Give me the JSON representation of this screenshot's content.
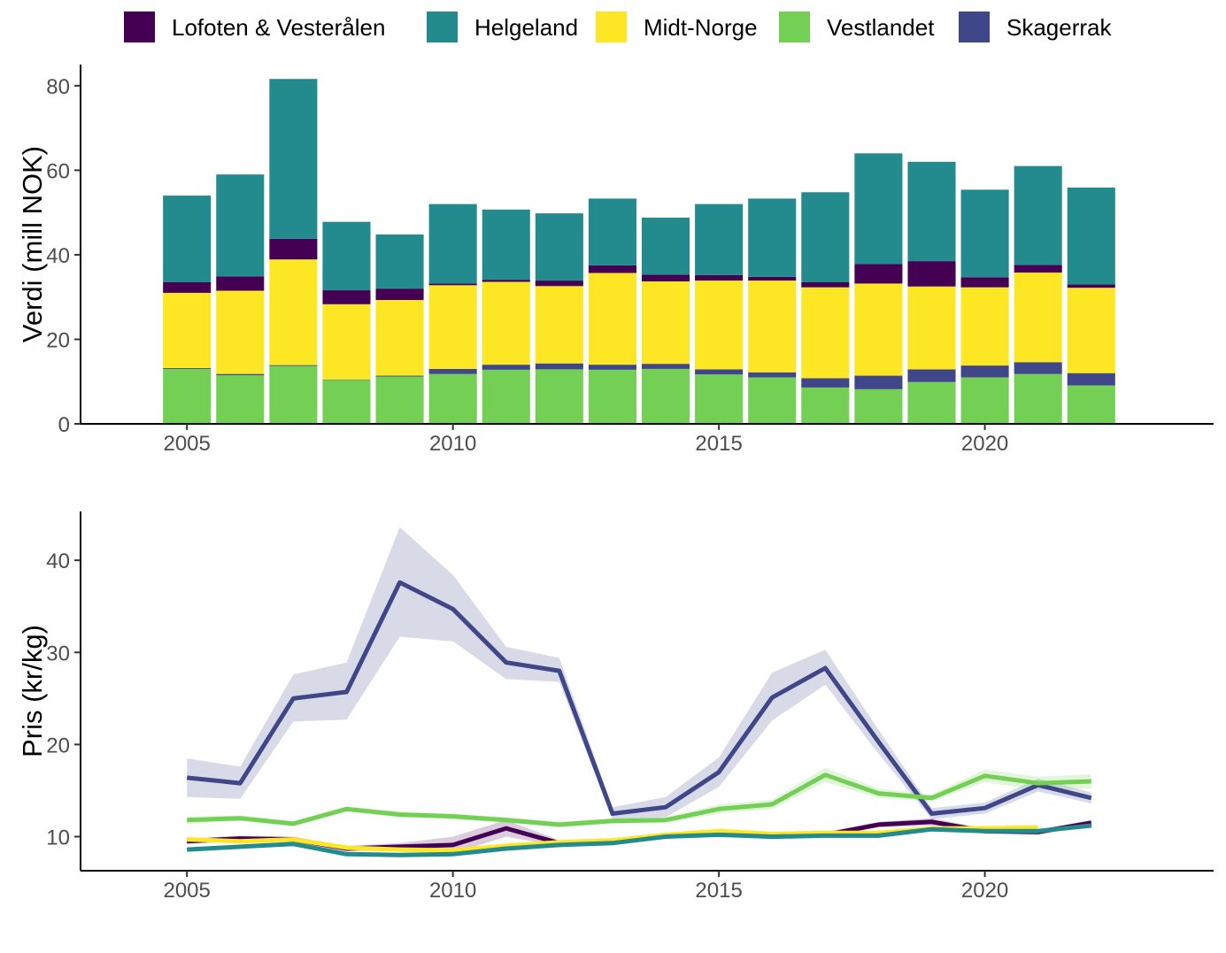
{
  "legend": [
    {
      "name": "Lofoten & Vesterålen",
      "color": "#440154"
    },
    {
      "name": "Helgeland",
      "color": "#238A8D"
    },
    {
      "name": "Midt-Norge",
      "color": "#FDE725"
    },
    {
      "name": "Vestlandet",
      "color": "#73D055"
    },
    {
      "name": "Skagerrak",
      "color": "#404788"
    }
  ],
  "chart_data": [
    {
      "type": "bar",
      "stacked": true,
      "ylabel": "Verdi (mill NOK)",
      "xlabel": "",
      "ylim": [
        0,
        85
      ],
      "xlim": [
        2003.0,
        2024.3
      ],
      "yticks": [
        0,
        20,
        40,
        60,
        80
      ],
      "xticks": [
        2005,
        2010,
        2015,
        2020
      ],
      "categories": [
        2005,
        2006,
        2007,
        2008,
        2009,
        2010,
        2011,
        2012,
        2013,
        2014,
        2015,
        2016,
        2017,
        2018,
        2019,
        2020,
        2021,
        2022
      ],
      "series": [
        {
          "name": "Vestlandet",
          "color": "#73D055",
          "values": [
            13.0,
            11.5,
            13.7,
            10.4,
            11.2,
            11.8,
            12.8,
            12.9,
            12.8,
            13.0,
            11.7,
            11.0,
            8.6,
            8.2,
            9.9,
            11.0,
            11.8,
            9.1
          ]
        },
        {
          "name": "Skagerrak",
          "color": "#404788",
          "values": [
            0.2,
            0.3,
            0.2,
            0.1,
            0.2,
            1.2,
            1.2,
            1.4,
            1.2,
            1.2,
            1.2,
            1.2,
            2.2,
            3.2,
            3.0,
            2.8,
            2.8,
            2.9
          ]
        },
        {
          "name": "Midt-Norge",
          "color": "#FDE725",
          "values": [
            17.8,
            19.7,
            25.0,
            17.8,
            17.9,
            19.8,
            19.6,
            18.3,
            21.7,
            19.5,
            21.0,
            21.7,
            21.5,
            21.8,
            19.6,
            18.5,
            21.2,
            20.2
          ]
        },
        {
          "name": "Lofoten & Vesterålen",
          "color": "#440154",
          "values": [
            2.5,
            3.4,
            4.9,
            3.3,
            2.7,
            0.4,
            0.5,
            1.3,
            1.8,
            1.6,
            1.3,
            0.9,
            1.2,
            4.6,
            6.0,
            2.4,
            1.8,
            0.8
          ]
        },
        {
          "name": "Helgeland",
          "color": "#238A8D",
          "values": [
            20.5,
            24.1,
            37.8,
            16.2,
            12.8,
            18.8,
            16.6,
            15.9,
            15.8,
            13.5,
            16.8,
            18.5,
            21.3,
            26.2,
            23.5,
            20.7,
            23.4,
            22.9
          ]
        }
      ]
    },
    {
      "type": "line",
      "ylabel": "Pris (kr/kg)",
      "xlabel": "",
      "ylim": [
        6.3,
        45.3
      ],
      "xlim": [
        2003.0,
        2024.3
      ],
      "yticks": [
        10,
        20,
        30,
        40
      ],
      "xticks": [
        2005,
        2010,
        2015,
        2020
      ],
      "x": [
        2005,
        2006,
        2007,
        2008,
        2009,
        2010,
        2011,
        2012,
        2013,
        2014,
        2015,
        2016,
        2017,
        2018,
        2019,
        2020,
        2021,
        2022
      ],
      "series": [
        {
          "name": "Skagerrak",
          "color": "#404788",
          "values": [
            16.4,
            15.8,
            25.0,
            25.7,
            37.6,
            34.7,
            28.9,
            28.0,
            12.5,
            13.2,
            17.0,
            25.1,
            28.3,
            20.3,
            12.5,
            13.1,
            15.6,
            14.2
          ],
          "lower": [
            14.3,
            14.1,
            22.5,
            22.7,
            31.7,
            31.2,
            27.1,
            26.8,
            11.9,
            12.1,
            15.4,
            22.6,
            26.5,
            19.0,
            11.9,
            12.5,
            14.9,
            13.6
          ],
          "upper": [
            18.5,
            17.6,
            27.6,
            28.9,
            43.6,
            38.4,
            30.6,
            29.4,
            13.2,
            14.3,
            18.6,
            27.8,
            30.3,
            21.6,
            13.1,
            13.7,
            16.3,
            14.8
          ]
        },
        {
          "name": "Vestlandet",
          "color": "#73D055",
          "values": [
            11.8,
            12.0,
            11.4,
            13.0,
            12.4,
            12.2,
            11.8,
            11.3,
            11.7,
            11.8,
            13.0,
            13.5,
            16.7,
            14.7,
            14.2,
            16.6,
            15.8,
            16.0
          ],
          "lower": [
            11.4,
            11.7,
            11.1,
            12.7,
            12.1,
            11.9,
            11.5,
            11.0,
            11.4,
            11.5,
            12.5,
            13.0,
            15.9,
            14.2,
            13.8,
            15.9,
            15.1,
            15.2
          ],
          "upper": [
            12.2,
            12.3,
            11.7,
            13.3,
            12.7,
            12.5,
            12.1,
            11.6,
            12.0,
            12.1,
            13.5,
            14.0,
            17.5,
            15.2,
            14.6,
            17.3,
            16.5,
            16.8
          ]
        },
        {
          "name": "Lofoten & Vesterålen",
          "color": "#440154",
          "values": [
            9.5,
            9.8,
            9.7,
            8.7,
            8.9,
            9.1,
            10.9,
            9.3,
            9.4,
            10.1,
            10.4,
            10.0,
            10.2,
            11.3,
            11.6,
            10.6,
            10.5,
            11.5
          ],
          "lower": [
            9.2,
            9.5,
            9.4,
            8.4,
            8.5,
            8.2,
            10.0,
            9.0,
            9.1,
            9.8,
            10.1,
            9.7,
            9.9,
            11.0,
            11.2,
            10.3,
            10.2,
            11.2
          ],
          "upper": [
            9.8,
            10.1,
            10.0,
            9.0,
            9.3,
            10.0,
            11.8,
            9.6,
            9.7,
            10.4,
            10.7,
            10.3,
            10.5,
            11.6,
            12.0,
            10.9,
            10.8,
            11.8
          ]
        },
        {
          "name": "Midt-Norge",
          "color": "#FDE725",
          "values": [
            9.7,
            9.5,
            9.7,
            8.8,
            8.6,
            8.5,
            9.0,
            9.4,
            9.6,
            10.2,
            10.6,
            10.3,
            10.4,
            10.4,
            10.9,
            10.9,
            11.0
          ],
          "x": [
            2005,
            2006,
            2007,
            2008,
            2009,
            2010,
            2011,
            2012,
            2013,
            2014,
            2015,
            2016,
            2017,
            2018,
            2019,
            2020,
            2021
          ]
        },
        {
          "name": "Helgeland",
          "color": "#238A8D",
          "values": [
            8.6,
            8.9,
            9.2,
            8.1,
            8.0,
            8.1,
            8.7,
            9.1,
            9.3,
            10.0,
            10.2,
            10.0,
            10.1,
            10.1,
            10.8,
            10.6,
            10.6,
            11.2
          ]
        }
      ]
    }
  ]
}
